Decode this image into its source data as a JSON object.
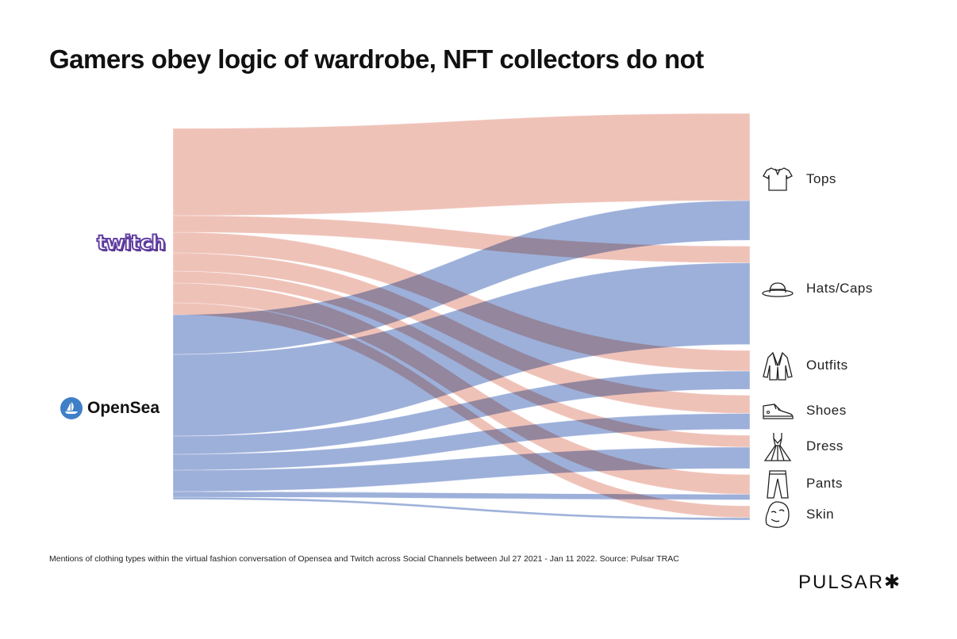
{
  "title": "Gamers obey logic of wardrobe, NFT collectors do not",
  "caption": "Mentions of clothing types within the virtual fashion conversation of Opensea and Twitch across Social Channels between Jul 27 2021 - Jan 11 2022. Source: Pulsar TRAC",
  "brand": "PULSAR✱",
  "chart_data": {
    "type": "sankey",
    "title": "Gamers obey logic of wardrobe, NFT collectors do not",
    "sources": [
      {
        "name": "twitch",
        "logo": "twitch-logo",
        "color": "#efc2b8"
      },
      {
        "name": "OpenSea",
        "logo": "opensea-logo",
        "color": "#9db0da"
      }
    ],
    "targets": [
      {
        "name": "Tops",
        "icon": "t-shirt-icon"
      },
      {
        "name": "Hats/Caps",
        "icon": "hat-icon"
      },
      {
        "name": "Outfits",
        "icon": "jacket-icon"
      },
      {
        "name": "Shoes",
        "icon": "sneaker-icon"
      },
      {
        "name": "Dress",
        "icon": "dress-icon"
      },
      {
        "name": "Pants",
        "icon": "pants-icon"
      },
      {
        "name": "Skin",
        "icon": "face-mask-icon"
      }
    ],
    "flows": {
      "twitch": [
        110,
        21,
        26,
        23,
        15,
        25,
        15
      ],
      "OpenSea": [
        50,
        103,
        23,
        20,
        27,
        7,
        3
      ]
    },
    "value_note": "relative mention volume (unlabeled)"
  }
}
